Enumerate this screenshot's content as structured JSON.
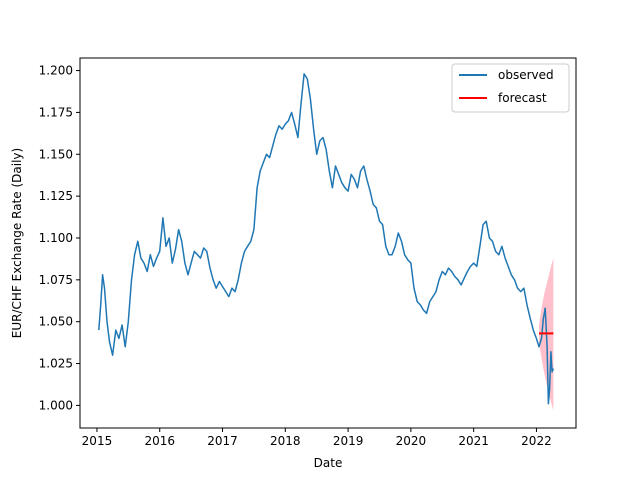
{
  "chart_data": {
    "type": "line",
    "xlabel": "Date",
    "ylabel": "EUR/CHF Exchange Rate (Daily)",
    "xlim": [
      2014.73,
      2022.63
    ],
    "ylim": [
      0.9865,
      1.2075
    ],
    "x_ticks": [
      2015,
      2016,
      2017,
      2018,
      2019,
      2020,
      2021,
      2022
    ],
    "x_tick_labels": [
      "2015",
      "2016",
      "2017",
      "2018",
      "2019",
      "2020",
      "2021",
      "2022"
    ],
    "y_ticks": [
      1.0,
      1.025,
      1.05,
      1.075,
      1.1,
      1.125,
      1.15,
      1.175,
      1.2
    ],
    "y_tick_labels": [
      "1.000",
      "1.025",
      "1.050",
      "1.075",
      "1.100",
      "1.125",
      "1.150",
      "1.175",
      "1.200"
    ],
    "grid": false,
    "legend_position": "top-right",
    "series": [
      {
        "name": "observed",
        "color": "#1f77b4",
        "x": [
          2015.03,
          2015.06,
          2015.09,
          2015.12,
          2015.16,
          2015.2,
          2015.25,
          2015.3,
          2015.35,
          2015.4,
          2015.45,
          2015.5,
          2015.55,
          2015.6,
          2015.65,
          2015.7,
          2015.75,
          2015.8,
          2015.85,
          2015.9,
          2015.95,
          2016.0,
          2016.05,
          2016.1,
          2016.15,
          2016.2,
          2016.25,
          2016.3,
          2016.35,
          2016.4,
          2016.45,
          2016.5,
          2016.55,
          2016.6,
          2016.65,
          2016.7,
          2016.75,
          2016.8,
          2016.85,
          2016.9,
          2016.95,
          2017.0,
          2017.05,
          2017.1,
          2017.15,
          2017.2,
          2017.25,
          2017.3,
          2017.35,
          2017.4,
          2017.45,
          2017.5,
          2017.55,
          2017.6,
          2017.65,
          2017.7,
          2017.75,
          2017.8,
          2017.85,
          2017.9,
          2017.95,
          2018.0,
          2018.05,
          2018.1,
          2018.15,
          2018.2,
          2018.25,
          2018.3,
          2018.35,
          2018.4,
          2018.45,
          2018.5,
          2018.55,
          2018.6,
          2018.65,
          2018.7,
          2018.75,
          2018.8,
          2018.85,
          2018.9,
          2018.95,
          2019.0,
          2019.05,
          2019.1,
          2019.15,
          2019.2,
          2019.25,
          2019.3,
          2019.35,
          2019.4,
          2019.45,
          2019.5,
          2019.55,
          2019.6,
          2019.65,
          2019.7,
          2019.75,
          2019.8,
          2019.85,
          2019.9,
          2019.95,
          2020.0,
          2020.05,
          2020.1,
          2020.15,
          2020.2,
          2020.25,
          2020.3,
          2020.35,
          2020.4,
          2020.45,
          2020.5,
          2020.55,
          2020.6,
          2020.65,
          2020.7,
          2020.75,
          2020.8,
          2020.85,
          2020.9,
          2020.95,
          2021.0,
          2021.05,
          2021.1,
          2021.15,
          2021.2,
          2021.25,
          2021.3,
          2021.35,
          2021.4,
          2021.45,
          2021.5,
          2021.55,
          2021.6,
          2021.65,
          2021.7,
          2021.75,
          2021.8,
          2021.85,
          2021.9,
          2021.95,
          2022.0,
          2022.04,
          2022.08,
          2022.11,
          2022.14,
          2022.17,
          2022.19,
          2022.21,
          2022.23,
          2022.25,
          2022.27
        ],
        "y": [
          1.045,
          1.06,
          1.078,
          1.07,
          1.05,
          1.038,
          1.03,
          1.045,
          1.04,
          1.048,
          1.035,
          1.05,
          1.075,
          1.09,
          1.098,
          1.088,
          1.085,
          1.08,
          1.09,
          1.083,
          1.088,
          1.092,
          1.112,
          1.095,
          1.1,
          1.085,
          1.093,
          1.105,
          1.098,
          1.085,
          1.078,
          1.085,
          1.092,
          1.09,
          1.088,
          1.094,
          1.092,
          1.082,
          1.075,
          1.07,
          1.074,
          1.071,
          1.068,
          1.065,
          1.07,
          1.068,
          1.075,
          1.085,
          1.092,
          1.095,
          1.098,
          1.105,
          1.13,
          1.14,
          1.145,
          1.15,
          1.148,
          1.155,
          1.162,
          1.167,
          1.165,
          1.168,
          1.17,
          1.175,
          1.168,
          1.16,
          1.18,
          1.198,
          1.195,
          1.183,
          1.165,
          1.15,
          1.158,
          1.16,
          1.153,
          1.14,
          1.13,
          1.143,
          1.138,
          1.133,
          1.13,
          1.128,
          1.138,
          1.135,
          1.13,
          1.14,
          1.143,
          1.135,
          1.128,
          1.12,
          1.118,
          1.11,
          1.108,
          1.095,
          1.09,
          1.09,
          1.095,
          1.103,
          1.098,
          1.09,
          1.087,
          1.085,
          1.07,
          1.062,
          1.06,
          1.057,
          1.055,
          1.062,
          1.065,
          1.068,
          1.075,
          1.08,
          1.078,
          1.082,
          1.08,
          1.077,
          1.075,
          1.072,
          1.076,
          1.08,
          1.083,
          1.085,
          1.083,
          1.095,
          1.108,
          1.11,
          1.1,
          1.098,
          1.092,
          1.09,
          1.095,
          1.088,
          1.083,
          1.078,
          1.075,
          1.07,
          1.068,
          1.07,
          1.06,
          1.052,
          1.045,
          1.04,
          1.035,
          1.04,
          1.052,
          1.058,
          1.035,
          1.001,
          1.01,
          1.032,
          1.02,
          1.022
        ]
      },
      {
        "name": "forecast",
        "color": "#ff0000",
        "x": [
          2022.04,
          2022.27
        ],
        "y": [
          1.043,
          1.043
        ]
      }
    ],
    "confidence_band": {
      "color": "#ffc0cb",
      "x": [
        2022.04,
        2022.08,
        2022.12,
        2022.16,
        2022.2,
        2022.24,
        2022.27
      ],
      "upper": [
        1.048,
        1.058,
        1.066,
        1.072,
        1.078,
        1.084,
        1.088
      ],
      "lower": [
        1.038,
        1.028,
        1.02,
        1.013,
        1.007,
        1.001,
        0.997
      ]
    }
  }
}
